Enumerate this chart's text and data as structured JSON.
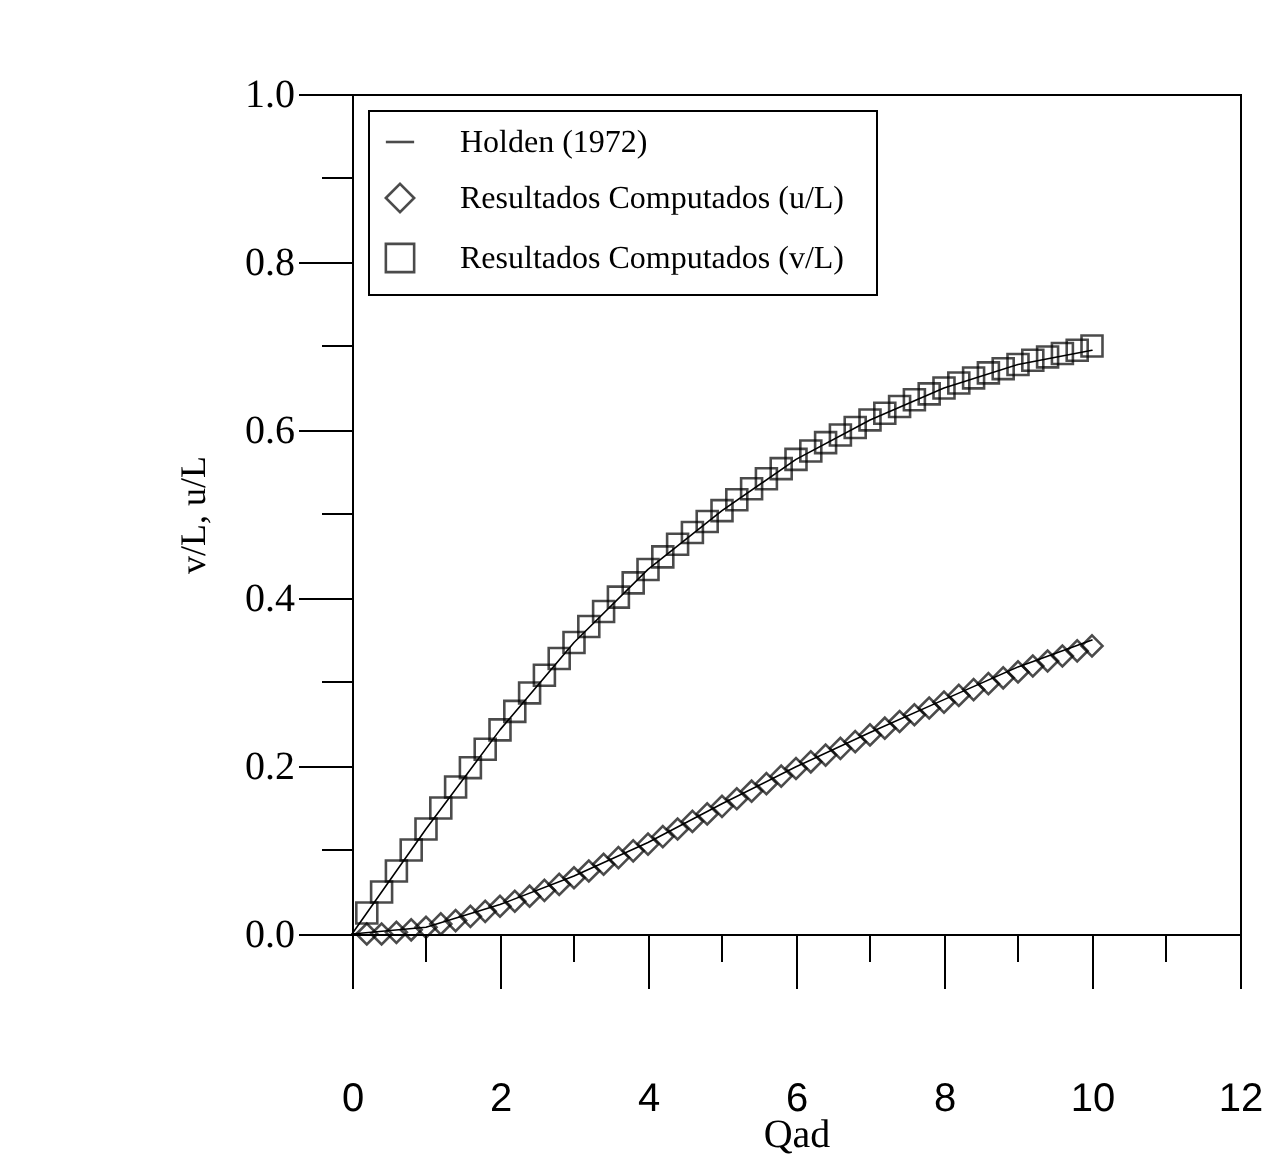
{
  "chart_data": {
    "type": "scatter",
    "xlabel": "Qad",
    "ylabel": "v/L, u/L",
    "xlim": [
      0,
      12
    ],
    "ylim": [
      0,
      1
    ],
    "xticks": [
      0,
      {
        "value": 1,
        "label": null
      },
      2,
      {
        "value": 3,
        "label": null
      },
      4,
      {
        "value": 5,
        "label": null
      },
      6,
      {
        "value": 7,
        "label": null
      },
      8,
      {
        "value": 9,
        "label": null
      },
      10,
      {
        "value": 11,
        "label": null
      },
      12
    ],
    "yticks": [
      {
        "value": 0,
        "label": "0.0"
      },
      {
        "value": 0.1,
        "label": null
      },
      {
        "value": 0.2,
        "label": "0.2"
      },
      {
        "value": 0.3,
        "label": null
      },
      {
        "value": 0.4,
        "label": "0.4"
      },
      {
        "value": 0.5,
        "label": null
      },
      {
        "value": 0.6,
        "label": "0.6"
      },
      {
        "value": 0.7,
        "label": null
      },
      {
        "value": 0.8,
        "label": "0.8"
      },
      {
        "value": 0.9,
        "label": null
      },
      {
        "value": 1.0,
        "label": "1.0"
      }
    ],
    "legend": "top left",
    "grid": false,
    "series": [
      {
        "name": "Holden (1972)",
        "type": "line",
        "marker": "none",
        "color": "#000000",
        "x": [
          0,
          1,
          2,
          3,
          4,
          5,
          6,
          7,
          8,
          9,
          10
        ],
        "values": [
          0,
          0.125,
          0.243,
          0.347,
          0.434,
          0.504,
          0.565,
          0.612,
          0.65,
          0.678,
          0.695
        ]
      },
      {
        "type": "line",
        "marker": "none",
        "color": "#000000",
        "x": [
          0,
          1,
          2,
          3,
          4,
          5,
          6,
          7,
          8,
          9,
          10
        ],
        "values": [
          0,
          0.008,
          0.035,
          0.069,
          0.109,
          0.155,
          0.199,
          0.24,
          0.279,
          0.318,
          0.35
        ]
      },
      {
        "name": "Resultados   Computados (u/L)",
        "type": "scatter",
        "marker": "diamond",
        "color": "#000000",
        "x": [
          0.2,
          0.4,
          0.6,
          0.8,
          1.0,
          1.2,
          1.4,
          1.6,
          1.8,
          2.0,
          2.2,
          2.4,
          2.6,
          2.8,
          3.0,
          3.2,
          3.4,
          3.6,
          3.8,
          4.0,
          4.2,
          4.4,
          4.6,
          4.8,
          5.0,
          5.2,
          5.4,
          5.6,
          5.8,
          6.0,
          6.2,
          6.4,
          6.6,
          6.8,
          7.0,
          7.2,
          7.4,
          7.6,
          7.8,
          8.0,
          8.2,
          8.4,
          8.6,
          8.8,
          9.0,
          9.2,
          9.4,
          9.6,
          9.8,
          10.0
        ],
        "values": [
          0.0,
          0.0,
          0.002,
          0.005,
          0.008,
          0.012,
          0.016,
          0.021,
          0.027,
          0.033,
          0.039,
          0.045,
          0.052,
          0.059,
          0.067,
          0.075,
          0.083,
          0.091,
          0.099,
          0.107,
          0.116,
          0.125,
          0.134,
          0.143,
          0.152,
          0.161,
          0.17,
          0.179,
          0.188,
          0.197,
          0.205,
          0.213,
          0.221,
          0.229,
          0.237,
          0.245,
          0.253,
          0.261,
          0.269,
          0.276,
          0.284,
          0.291,
          0.298,
          0.305,
          0.312,
          0.319,
          0.325,
          0.331,
          0.337,
          0.343
        ]
      },
      {
        "name": "Resultados Computados (v/L)",
        "type": "scatter",
        "marker": "square",
        "color": "#000000",
        "x": [
          0.2,
          0.4,
          0.6,
          0.8,
          1.0,
          1.2,
          1.4,
          1.6,
          1.8,
          2.0,
          2.2,
          2.4,
          2.6,
          2.8,
          3.0,
          3.2,
          3.4,
          3.6,
          3.8,
          4.0,
          4.2,
          4.4,
          4.6,
          4.8,
          5.0,
          5.2,
          5.4,
          5.6,
          5.8,
          6.0,
          6.2,
          6.4,
          6.6,
          6.8,
          7.0,
          7.2,
          7.4,
          7.6,
          7.8,
          8.0,
          8.2,
          8.4,
          8.6,
          8.8,
          9.0,
          9.2,
          9.4,
          9.6,
          9.8,
          10.0
        ],
        "values": [
          0.025,
          0.05,
          0.075,
          0.1,
          0.125,
          0.15,
          0.175,
          0.198,
          0.22,
          0.243,
          0.265,
          0.287,
          0.308,
          0.328,
          0.347,
          0.366,
          0.384,
          0.401,
          0.418,
          0.434,
          0.449,
          0.464,
          0.478,
          0.491,
          0.504,
          0.517,
          0.53,
          0.542,
          0.554,
          0.565,
          0.575,
          0.585,
          0.594,
          0.603,
          0.612,
          0.62,
          0.628,
          0.636,
          0.643,
          0.65,
          0.656,
          0.662,
          0.668,
          0.673,
          0.678,
          0.683,
          0.687,
          0.691,
          0.695,
          0.7
        ]
      }
    ]
  }
}
